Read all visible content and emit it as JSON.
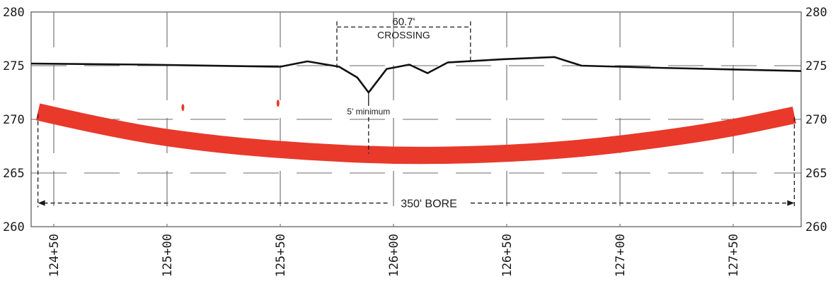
{
  "chart_data": {
    "type": "line",
    "title": "",
    "xlabel": "",
    "ylabel": "",
    "x_range": [
      12440,
      12780
    ],
    "y_range": [
      260,
      280
    ],
    "grid": true,
    "grid_style": "dashed",
    "y_ticks_left": [
      "280",
      "275",
      "270",
      "265",
      "260"
    ],
    "y_ticks_right": [
      "280",
      "275",
      "270",
      "265",
      "260"
    ],
    "x_ticks": [
      {
        "station": 12450,
        "label": "124+50"
      },
      {
        "station": 12500,
        "label": "125+00"
      },
      {
        "station": 12550,
        "label": "125+50"
      },
      {
        "station": 12600,
        "label": "126+00"
      },
      {
        "station": 12650,
        "label": "126+50"
      },
      {
        "station": 12700,
        "label": "127+00"
      },
      {
        "station": 12750,
        "label": "127+50"
      }
    ],
    "series": [
      {
        "color": "#111111",
        "points": [
          [
            12440,
            275.2
          ],
          [
            12490,
            275.1
          ],
          [
            12550,
            274.9
          ],
          [
            12562,
            275.4
          ],
          [
            12576,
            274.9
          ],
          [
            12584,
            273.9
          ],
          [
            12589,
            272.5
          ],
          [
            12597,
            274.7
          ],
          [
            12607,
            275.1
          ],
          [
            12615,
            274.3
          ],
          [
            12624,
            275.3
          ],
          [
            12648,
            275.6
          ],
          [
            12671,
            275.8
          ],
          [
            12683,
            275.0
          ],
          [
            12717,
            274.8
          ],
          [
            12780,
            274.5
          ]
        ]
      },
      {
        "color": "#e8392b",
        "width_ft": 1.6,
        "points": [
          [
            12443,
            270.7
          ],
          [
            12480,
            268.9
          ],
          [
            12520,
            267.7
          ],
          [
            12560,
            267.0
          ],
          [
            12600,
            266.6
          ],
          [
            12640,
            266.7
          ],
          [
            12680,
            267.2
          ],
          [
            12720,
            268.2
          ],
          [
            12750,
            269.2
          ],
          [
            12777,
            270.4
          ]
        ]
      }
    ],
    "markers": [
      {
        "color": "#e8392b",
        "points": [
          [
            12507,
            271.1
          ],
          [
            12549,
            271.5
          ]
        ]
      }
    ],
    "annotations": {
      "crossing": {
        "label_value": "60.7'",
        "label_text": "CROSSING",
        "from": 12575,
        "to": 12634,
        "elevation": 278.6
      },
      "minimum": {
        "label": "5' minimum",
        "station": 12589,
        "from_elevation": 272.5,
        "to_elevation": 266.8
      },
      "bore": {
        "label": "350' BORE",
        "from": 12443,
        "to": 12777,
        "elevation": 262.2
      }
    }
  }
}
